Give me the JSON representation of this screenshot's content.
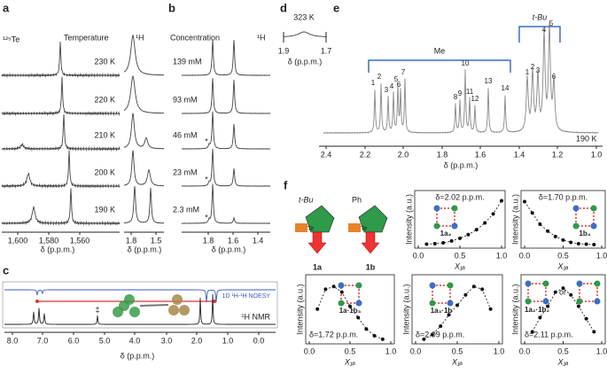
{
  "figure": {
    "a": {
      "label": "a",
      "nucleus": "¹²⁵Te",
      "title": "Temperature",
      "nucleus2": "¹H",
      "temps": [
        "230 K",
        "220 K",
        "210 K",
        "200 K",
        "190 K"
      ],
      "xticks_te": [
        "1,600",
        "1,580",
        "1,560"
      ],
      "xticks_h": [
        "1.8",
        "1.5"
      ],
      "xlabel": "δ (p.p.m.)"
    },
    "b": {
      "label": "b",
      "title": "Concentration",
      "nucleus": "¹H",
      "concentrations": [
        "139 mM",
        "93 mM",
        "46 mM",
        "23 mM",
        "2.3 mM"
      ],
      "asterisk": "*",
      "xticks": [
        "1.8",
        "1.6",
        "1.4"
      ],
      "xlabel": "δ (p.p.m.)"
    },
    "c": {
      "label": "c",
      "noesy": "1D ¹H-¹H NOESY",
      "nmr": "¹H NMR",
      "dagger": "‡",
      "xticks": [
        "8.0",
        "7.0",
        "6.0",
        "5.0",
        "4.0",
        "3.0",
        "2.0",
        "1.0",
        "0.0"
      ],
      "xlabel": "δ (p.p.m.)"
    },
    "d": {
      "label": "d",
      "temp": "323 K",
      "xticks": [
        "1.9",
        "1.7"
      ],
      "xlabel": "δ (p.p.m.)"
    },
    "e": {
      "label": "e",
      "tbu": "t-Bu",
      "me": "Me",
      "temp": "190 K",
      "me_peaks": [
        "1",
        "2",
        "3",
        "4",
        "5",
        "6",
        "7",
        "8",
        "9",
        "10",
        "11",
        "12",
        "13",
        "14"
      ],
      "tbu_peaks": [
        "1",
        "2",
        "3",
        "4",
        "5",
        "6"
      ],
      "xticks": [
        "2.4",
        "2.2",
        "2.0",
        "1.8",
        "1.6",
        "1.4",
        "1.2",
        "1.0"
      ],
      "xlabel": "δ (p.p.m.)"
    },
    "f": {
      "label": "f",
      "tbu": "t-Bu",
      "ph": "Ph",
      "te": "Te",
      "mol1": "1a",
      "mol2": "1b"
    }
  },
  "chart_data": [
    {
      "type": "scatter",
      "title": "δ=2.02 p.p.m.",
      "label": "1a₄",
      "ylabel": "Intensity (a.u.)",
      "xlabel": "X₁ₐ",
      "x": [
        0.1,
        0.2,
        0.3,
        0.4,
        0.5,
        0.6,
        0.7,
        0.8,
        0.9,
        1.0
      ],
      "values": [
        0.01,
        0.02,
        0.04,
        0.08,
        0.14,
        0.22,
        0.33,
        0.48,
        0.68,
        0.97
      ],
      "xlim": [
        0,
        1
      ],
      "ylim": [
        0,
        1
      ],
      "xticks": [
        {
          "value": 0,
          "label": "0.0"
        },
        {
          "value": 0.5,
          "label": "0.5"
        },
        {
          "value": 1,
          "label": "1.0"
        }
      ]
    },
    {
      "type": "scatter",
      "title": "δ=1.70 p.p.m.",
      "label": "1b₄",
      "ylabel": "Intensity (a.u.)",
      "xlabel": "X₁ₐ",
      "x": [
        0,
        0.1,
        0.2,
        0.3,
        0.4,
        0.5,
        0.6,
        0.7,
        0.8,
        0.9
      ],
      "values": [
        0.95,
        0.7,
        0.45,
        0.3,
        0.18,
        0.1,
        0.05,
        0.02,
        0.01,
        0.0
      ],
      "xlim": [
        0,
        1
      ],
      "ylim": [
        0,
        1
      ],
      "xticks": [
        {
          "value": 0,
          "label": "0.0"
        },
        {
          "value": 0.5,
          "label": "0.5"
        },
        {
          "value": 1,
          "label": "1.0"
        }
      ]
    },
    {
      "type": "scatter",
      "title": "δ=1.72 p.p.m.",
      "label": "1a·1b₃",
      "ylabel": "Intensity (a.u.)",
      "xlabel": "X₁ₐ",
      "x": [
        0.1,
        0.2,
        0.3,
        0.4,
        0.5,
        0.6,
        0.7,
        0.8,
        0.9
      ],
      "values": [
        0.55,
        0.9,
        0.95,
        0.85,
        0.6,
        0.4,
        0.2,
        0.08,
        0.02
      ],
      "xlim": [
        0,
        1
      ],
      "ylim": [
        0,
        1
      ],
      "xticks": [
        {
          "value": 0,
          "label": "0.0"
        },
        {
          "value": 0.5,
          "label": "0.5"
        },
        {
          "value": 1,
          "label": "1.0"
        }
      ]
    },
    {
      "type": "scatter",
      "title": "δ=2.09 p.p.m.",
      "label": "1a₃·1b",
      "ylabel": "Intensity (a.u.)",
      "xlabel": "X₁ₐ",
      "x": [
        0.1,
        0.2,
        0.3,
        0.4,
        0.5,
        0.6,
        0.7,
        0.8,
        0.9
      ],
      "values": [
        0.02,
        0.1,
        0.25,
        0.45,
        0.62,
        0.8,
        0.95,
        0.9,
        0.55
      ],
      "xlim": [
        0,
        1
      ],
      "ylim": [
        0,
        1
      ],
      "xticks": [
        {
          "value": 0,
          "label": "0.0"
        },
        {
          "value": 0.5,
          "label": "0.5"
        },
        {
          "value": 1,
          "label": "1.0"
        }
      ]
    },
    {
      "type": "scatter",
      "title": "δ=2.11 p.p.m.",
      "label": "1a₂·1b₂",
      "or": "or",
      "ylabel": "Intensity (a.u.)",
      "xlabel": "X₁ₐ",
      "x": [
        0.1,
        0.2,
        0.3,
        0.4,
        0.5,
        0.6,
        0.7,
        0.8,
        0.9
      ],
      "values": [
        0.15,
        0.4,
        0.6,
        0.85,
        0.92,
        0.8,
        0.6,
        0.38,
        0.15
      ],
      "xlim": [
        0,
        1
      ],
      "ylim": [
        0,
        1
      ],
      "xticks": [
        {
          "value": 0,
          "label": "0.0"
        },
        {
          "value": 0.5,
          "label": "0.5"
        },
        {
          "value": 1,
          "label": "1.0"
        }
      ]
    }
  ]
}
